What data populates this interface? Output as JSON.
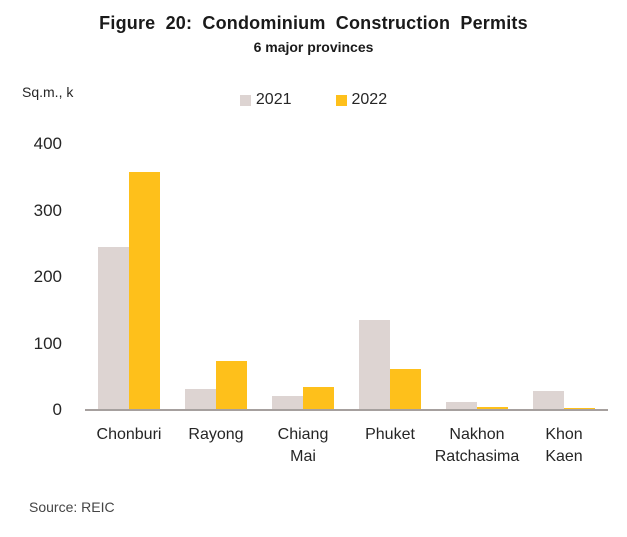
{
  "chart_data": {
    "type": "bar",
    "title": "Figure 20: Condominium Construction Permits",
    "subtitle": "6 major provinces",
    "unit_label": "Sq.m., k",
    "categories": [
      "Chonburi",
      "Rayong",
      "Chiang Mai",
      "Phuket",
      "Nakhon Ratchasima",
      "Khon Kaen"
    ],
    "category_lines": [
      [
        "Chonburi"
      ],
      [
        "Rayong"
      ],
      [
        "Chiang",
        "Mai"
      ],
      [
        "Phuket"
      ],
      [
        "Nakhon",
        "Ratchasima"
      ],
      [
        "Khon",
        "Kaen"
      ]
    ],
    "series": [
      {
        "name": "2021",
        "color": "#DDD4D2",
        "values": [
          245,
          32,
          21,
          135,
          12,
          28
        ]
      },
      {
        "name": "2022",
        "color": "#FEC01B",
        "values": [
          358,
          74,
          35,
          62,
          5,
          3
        ]
      }
    ],
    "ylim": [
      0,
      400
    ],
    "yticks": [
      0,
      100,
      200,
      300,
      400
    ],
    "grid": false,
    "legend_position": "top-center"
  },
  "source": {
    "text": "Source: REIC"
  },
  "colors": {
    "axis_line": "#A6A09E",
    "text": "#262626",
    "title_text": "#1A1A1A",
    "source_text": "#454545",
    "series_2021": "#DDD4D2",
    "series_2022": "#FEC01B"
  }
}
